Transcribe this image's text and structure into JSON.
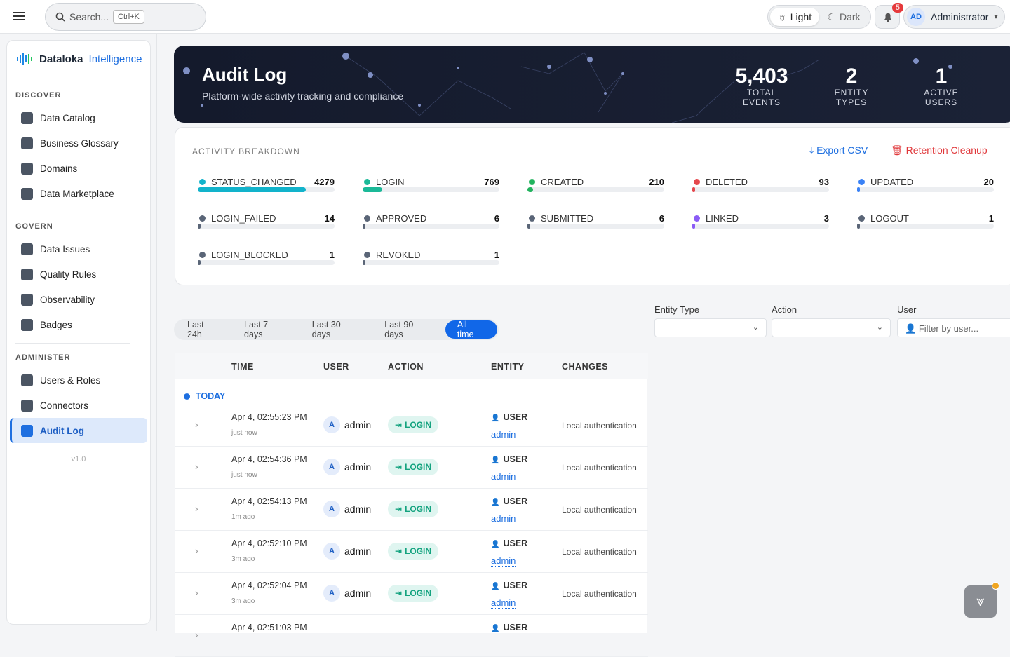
{
  "header": {
    "search_placeholder": "Search...",
    "shortcut": "Ctrl+K",
    "theme_light": "Light",
    "theme_dark": "Dark",
    "notifications": 5,
    "user_initials": "AD",
    "user_name": "Administrator"
  },
  "sidebar": {
    "brand_name": "Dataloka",
    "brand_accent": "Intelligence",
    "sections": [
      {
        "title": "DISCOVER",
        "items": [
          "Data Catalog",
          "Business Glossary",
          "Domains",
          "Data Marketplace"
        ]
      },
      {
        "title": "GOVERN",
        "items": [
          "Data Issues",
          "Quality Rules",
          "Observability",
          "Badges"
        ]
      },
      {
        "title": "ADMINISTER",
        "items": [
          "Users & Roles",
          "Connectors",
          "Audit Log"
        ]
      }
    ],
    "version": "v1.0"
  },
  "hero": {
    "title": "Audit Log",
    "subtitle": "Platform-wide activity tracking and compliance",
    "stats": [
      {
        "value": 5403,
        "label": "5,403",
        "caption": "TOTAL EVENTS"
      },
      {
        "value": 2,
        "label": "2",
        "caption": "ENTITY TYPES"
      },
      {
        "value": 1,
        "label": "1",
        "caption": "ACTIVE USERS"
      }
    ]
  },
  "breakdown": {
    "title": "ACTIVITY BREAKDOWN",
    "export": "Export CSV",
    "cleanup": "Retention Cleanup",
    "items": [
      {
        "name": "STATUS_CHANGED",
        "count": 4279,
        "color": "#12b3cb"
      },
      {
        "name": "LOGIN",
        "count": 769,
        "color": "#1bb998"
      },
      {
        "name": "CREATED",
        "count": 210,
        "color": "#22b35e"
      },
      {
        "name": "DELETED",
        "count": 93,
        "color": "#e5484d"
      },
      {
        "name": "UPDATED",
        "count": 20,
        "color": "#3b82f6"
      },
      {
        "name": "LOGIN_FAILED",
        "count": 14,
        "color": "#5a6577"
      },
      {
        "name": "APPROVED",
        "count": 6,
        "color": "#5a6577"
      },
      {
        "name": "SUBMITTED",
        "count": 6,
        "color": "#5a6577"
      },
      {
        "name": "LINKED",
        "count": 3,
        "color": "#8b5cf6"
      },
      {
        "name": "LOGOUT",
        "count": 1,
        "color": "#5a6577"
      },
      {
        "name": "LOGIN_BLOCKED",
        "count": 1,
        "color": "#5a6577"
      },
      {
        "name": "REVOKED",
        "count": 1,
        "color": "#5a6577"
      }
    ]
  },
  "filters": {
    "time_ranges": [
      "Last 24h",
      "Last 7 days",
      "Last 30 days",
      "Last 90 days",
      "All time"
    ],
    "entity_type": "Entity Type",
    "action": "Action",
    "user": "User",
    "user_placeholder": "Filter by user..."
  },
  "table": {
    "columns": [
      "TIME",
      "USER",
      "ACTION",
      "ENTITY",
      "CHANGES"
    ],
    "group": "TODAY",
    "rows": [
      {
        "time": "Apr 4, 02:55:23 PM",
        "relative": "just now",
        "avatar": "A",
        "user": "admin",
        "action": "LOGIN",
        "entity_type": "USER",
        "entity": "admin",
        "changes": "Local authentication"
      },
      {
        "time": "Apr 4, 02:54:36 PM",
        "relative": "just now",
        "avatar": "A",
        "user": "admin",
        "action": "LOGIN",
        "entity_type": "USER",
        "entity": "admin",
        "changes": "Local authentication"
      },
      {
        "time": "Apr 4, 02:54:13 PM",
        "relative": "1m ago",
        "avatar": "A",
        "user": "admin",
        "action": "LOGIN",
        "entity_type": "USER",
        "entity": "admin",
        "changes": "Local authentication"
      },
      {
        "time": "Apr 4, 02:52:10 PM",
        "relative": "3m ago",
        "avatar": "A",
        "user": "admin",
        "action": "LOGIN",
        "entity_type": "USER",
        "entity": "admin",
        "changes": "Local authentication"
      },
      {
        "time": "Apr 4, 02:52:04 PM",
        "relative": "3m ago",
        "avatar": "A",
        "user": "admin",
        "action": "LOGIN",
        "entity_type": "USER",
        "entity": "admin",
        "changes": "Local authentication"
      },
      {
        "time": "Apr 4, 02:51:03 PM",
        "entity_type": "USER"
      }
    ]
  }
}
